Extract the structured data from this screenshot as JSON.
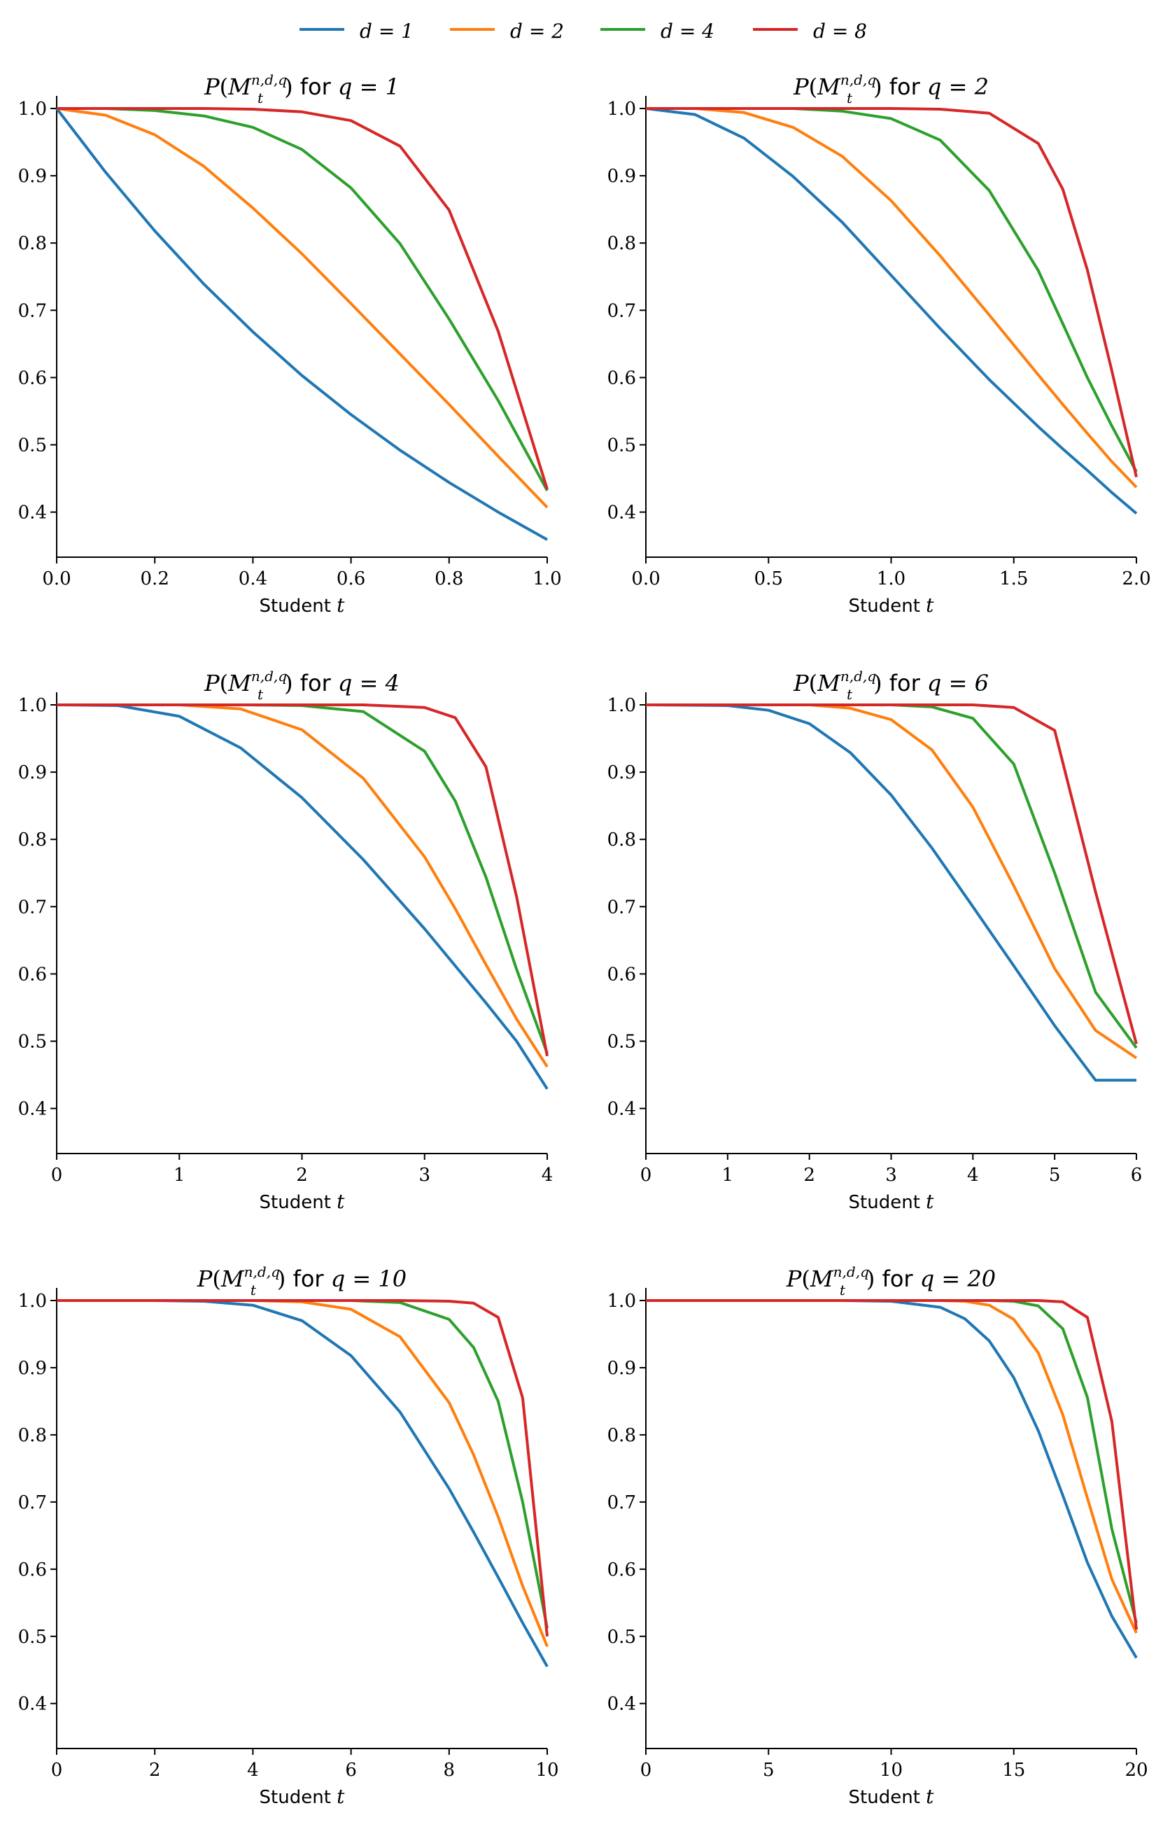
{
  "colors": {
    "d1": "#1f77b4",
    "d2": "#ff7f0e",
    "d4": "#2ca02c",
    "d8": "#d62728"
  },
  "legend": [
    {
      "label": "d = 1",
      "color": "#1f77b4"
    },
    {
      "label": "d = 2",
      "color": "#ff7f0e"
    },
    {
      "label": "d = 4",
      "color": "#2ca02c"
    },
    {
      "label": "d = 8",
      "color": "#d62728"
    }
  ],
  "chart_data": [
    {
      "type": "line",
      "title": "P(M_t^{n,d,q}) for q = 1",
      "q_label": "q = 1",
      "xlabel": "Student t",
      "xlim": [
        0,
        1
      ],
      "ylim": [
        0.333,
        1.0
      ],
      "xticks": [
        "0.0",
        "0.2",
        "0.4",
        "0.6",
        "0.8",
        "1.0"
      ],
      "xtick_values": [
        0,
        0.2,
        0.4,
        0.6,
        0.8,
        1.0
      ],
      "yticks": [
        "0.4",
        "0.5",
        "0.6",
        "0.7",
        "0.8",
        "0.9",
        "1.0"
      ],
      "ytick_values": [
        0.4,
        0.5,
        0.6,
        0.7,
        0.8,
        0.9,
        1.0
      ],
      "x": [
        0,
        0.1,
        0.2,
        0.3,
        0.4,
        0.5,
        0.6,
        0.7,
        0.8,
        0.9,
        1.0
      ],
      "series": [
        {
          "name": "d = 1",
          "values": [
            1.0,
            0.905,
            0.818,
            0.739,
            0.668,
            0.603,
            0.545,
            0.492,
            0.444,
            0.4,
            0.359
          ]
        },
        {
          "name": "d = 2",
          "values": [
            1.0,
            0.99,
            0.961,
            0.914,
            0.852,
            0.784,
            0.71,
            0.635,
            0.56,
            0.483,
            0.407
          ]
        },
        {
          "name": "d = 4",
          "values": [
            1.0,
            1.0,
            0.997,
            0.989,
            0.972,
            0.939,
            0.882,
            0.799,
            0.687,
            0.566,
            0.432
          ]
        },
        {
          "name": "d = 8",
          "values": [
            1.0,
            1.0,
            1.0,
            1.0,
            0.999,
            0.995,
            0.982,
            0.944,
            0.849,
            0.669,
            0.434
          ]
        }
      ]
    },
    {
      "type": "line",
      "title": "P(M_t^{n,d,q}) for q = 2",
      "q_label": "q = 2",
      "xlabel": "Student t",
      "xlim": [
        0,
        2
      ],
      "ylim": [
        0.333,
        1.0
      ],
      "xticks": [
        "0.0",
        "0.5",
        "1.0",
        "1.5",
        "2.0"
      ],
      "xtick_values": [
        0,
        0.5,
        1.0,
        1.5,
        2.0
      ],
      "yticks": [
        "0.4",
        "0.5",
        "0.6",
        "0.7",
        "0.8",
        "0.9",
        "1.0"
      ],
      "ytick_values": [
        0.4,
        0.5,
        0.6,
        0.7,
        0.8,
        0.9,
        1.0
      ],
      "x": [
        0,
        0.2,
        0.4,
        0.6,
        0.8,
        1.0,
        1.2,
        1.4,
        1.6,
        1.7,
        1.8,
        1.9,
        2.0
      ],
      "series": [
        {
          "name": "d = 1",
          "values": [
            1.0,
            0.991,
            0.956,
            0.899,
            0.831,
            0.752,
            0.673,
            0.597,
            0.527,
            0.494,
            0.462,
            0.429,
            0.398
          ]
        },
        {
          "name": "d = 2",
          "values": [
            1.0,
            1.0,
            0.994,
            0.972,
            0.929,
            0.863,
            0.781,
            0.693,
            0.604,
            0.56,
            0.517,
            0.475,
            0.437
          ]
        },
        {
          "name": "d = 4",
          "values": [
            1.0,
            1.0,
            1.0,
            1.0,
            0.996,
            0.985,
            0.953,
            0.878,
            0.759,
            0.68,
            0.6,
            0.528,
            0.46
          ]
        },
        {
          "name": "d = 8",
          "values": [
            1.0,
            1.0,
            1.0,
            1.0,
            1.0,
            1.0,
            0.999,
            0.993,
            0.948,
            0.88,
            0.76,
            0.61,
            0.452
          ]
        }
      ]
    },
    {
      "type": "line",
      "title": "P(M_t^{n,d,q}) for q = 4",
      "q_label": "q = 4",
      "xlabel": "Student t",
      "xlim": [
        0,
        4
      ],
      "ylim": [
        0.333,
        1.0
      ],
      "xticks": [
        "0",
        "1",
        "2",
        "3",
        "4"
      ],
      "xtick_values": [
        0,
        1,
        2,
        3,
        4
      ],
      "yticks": [
        "0.4",
        "0.5",
        "0.6",
        "0.7",
        "0.8",
        "0.9",
        "1.0"
      ],
      "ytick_values": [
        0.4,
        0.5,
        0.6,
        0.7,
        0.8,
        0.9,
        1.0
      ],
      "x": [
        0,
        0.5,
        1.0,
        1.5,
        2.0,
        2.5,
        3.0,
        3.25,
        3.5,
        3.75,
        4.0
      ],
      "series": [
        {
          "name": "d = 1",
          "values": [
            1.0,
            0.999,
            0.983,
            0.936,
            0.862,
            0.77,
            0.667,
            0.612,
            0.557,
            0.5,
            0.429
          ]
        },
        {
          "name": "d = 2",
          "values": [
            1.0,
            1.0,
            1.0,
            0.994,
            0.963,
            0.891,
            0.774,
            0.697,
            0.614,
            0.533,
            0.462
          ]
        },
        {
          "name": "d = 4",
          "values": [
            1.0,
            1.0,
            1.0,
            1.0,
            0.999,
            0.99,
            0.931,
            0.857,
            0.744,
            0.607,
            0.482
          ]
        },
        {
          "name": "d = 8",
          "values": [
            1.0,
            1.0,
            1.0,
            1.0,
            1.0,
            1.0,
            0.996,
            0.981,
            0.908,
            0.715,
            0.478
          ]
        }
      ]
    },
    {
      "type": "line",
      "title": "P(M_t^{n,d,q}) for q = 6",
      "q_label": "q = 6",
      "xlabel": "Student t",
      "xlim": [
        0,
        6
      ],
      "ylim": [
        0.333,
        1.0
      ],
      "xticks": [
        "0",
        "1",
        "2",
        "3",
        "4",
        "5",
        "6"
      ],
      "xtick_values": [
        0,
        1,
        2,
        3,
        4,
        5,
        6
      ],
      "yticks": [
        "0.4",
        "0.5",
        "0.6",
        "0.7",
        "0.8",
        "0.9",
        "1.0"
      ],
      "ytick_values": [
        0.4,
        0.5,
        0.6,
        0.7,
        0.8,
        0.9,
        1.0
      ],
      "x": [
        0,
        1.0,
        1.5,
        2.0,
        2.5,
        3.0,
        3.5,
        4.0,
        4.5,
        5.0,
        5.5,
        6.0
      ],
      "series": [
        {
          "name": "d = 1",
          "values": [
            1.0,
            0.999,
            0.992,
            0.972,
            0.929,
            0.866,
            0.787,
            0.7,
            0.612,
            0.523,
            0.442,
            0.442
          ]
        },
        {
          "name": "d = 2",
          "values": [
            1.0,
            1.0,
            1.0,
            1.0,
            0.995,
            0.978,
            0.933,
            0.848,
            0.731,
            0.608,
            0.516,
            0.475
          ]
        },
        {
          "name": "d = 4",
          "values": [
            1.0,
            1.0,
            1.0,
            1.0,
            1.0,
            1.0,
            0.997,
            0.98,
            0.912,
            0.75,
            0.573,
            0.49
          ]
        },
        {
          "name": "d = 8",
          "values": [
            1.0,
            1.0,
            1.0,
            1.0,
            1.0,
            1.0,
            1.0,
            1.0,
            0.996,
            0.962,
            0.722,
            0.496
          ]
        }
      ]
    },
    {
      "type": "line",
      "title": "P(M_t^{n,d,q}) for q = 10",
      "q_label": "q = 10",
      "xlabel": "Student t",
      "xlim": [
        0,
        10
      ],
      "ylim": [
        0.333,
        1.0
      ],
      "xticks": [
        "0",
        "2",
        "4",
        "6",
        "8",
        "10"
      ],
      "xtick_values": [
        0,
        2,
        4,
        6,
        8,
        10
      ],
      "yticks": [
        "0.4",
        "0.5",
        "0.6",
        "0.7",
        "0.8",
        "0.9",
        "1.0"
      ],
      "ytick_values": [
        0.4,
        0.5,
        0.6,
        0.7,
        0.8,
        0.9,
        1.0
      ],
      "x": [
        0,
        2,
        3,
        4,
        5,
        6,
        7,
        8,
        8.5,
        9,
        9.5,
        10
      ],
      "series": [
        {
          "name": "d = 1",
          "values": [
            1.0,
            1.0,
            0.999,
            0.993,
            0.97,
            0.918,
            0.834,
            0.72,
            0.655,
            0.588,
            0.52,
            0.455
          ]
        },
        {
          "name": "d = 2",
          "values": [
            1.0,
            1.0,
            1.0,
            1.0,
            0.998,
            0.987,
            0.946,
            0.848,
            0.77,
            0.678,
            0.575,
            0.485
          ]
        },
        {
          "name": "d = 4",
          "values": [
            1.0,
            1.0,
            1.0,
            1.0,
            1.0,
            1.0,
            0.997,
            0.972,
            0.93,
            0.85,
            0.7,
            0.512
          ]
        },
        {
          "name": "d = 8",
          "values": [
            1.0,
            1.0,
            1.0,
            1.0,
            1.0,
            1.0,
            1.0,
            0.999,
            0.996,
            0.975,
            0.855,
            0.5
          ]
        }
      ]
    },
    {
      "type": "line",
      "title": "P(M_t^{n,d,q}) for q = 20",
      "q_label": "q = 20",
      "xlabel": "Student t",
      "xlim": [
        0,
        20
      ],
      "ylim": [
        0.333,
        1.0
      ],
      "xticks": [
        "0",
        "5",
        "10",
        "15",
        "20"
      ],
      "xtick_values": [
        0,
        5,
        10,
        15,
        20
      ],
      "yticks": [
        "0.4",
        "0.5",
        "0.6",
        "0.7",
        "0.8",
        "0.9",
        "1.0"
      ],
      "ytick_values": [
        0.4,
        0.5,
        0.6,
        0.7,
        0.8,
        0.9,
        1.0
      ],
      "x": [
        0,
        5,
        8,
        10,
        12,
        13,
        14,
        15,
        16,
        17,
        18,
        19,
        20
      ],
      "series": [
        {
          "name": "d = 1",
          "values": [
            1.0,
            1.0,
            1.0,
            0.999,
            0.99,
            0.973,
            0.94,
            0.885,
            0.806,
            0.71,
            0.61,
            0.53,
            0.468
          ]
        },
        {
          "name": "d = 2",
          "values": [
            1.0,
            1.0,
            1.0,
            1.0,
            1.0,
            0.999,
            0.993,
            0.972,
            0.922,
            0.83,
            0.706,
            0.585,
            0.505
          ]
        },
        {
          "name": "d = 4",
          "values": [
            1.0,
            1.0,
            1.0,
            1.0,
            1.0,
            1.0,
            1.0,
            0.999,
            0.992,
            0.958,
            0.856,
            0.66,
            0.52
          ]
        },
        {
          "name": "d = 8",
          "values": [
            1.0,
            1.0,
            1.0,
            1.0,
            1.0,
            1.0,
            1.0,
            1.0,
            1.0,
            0.998,
            0.975,
            0.82,
            0.51
          ]
        }
      ]
    }
  ]
}
